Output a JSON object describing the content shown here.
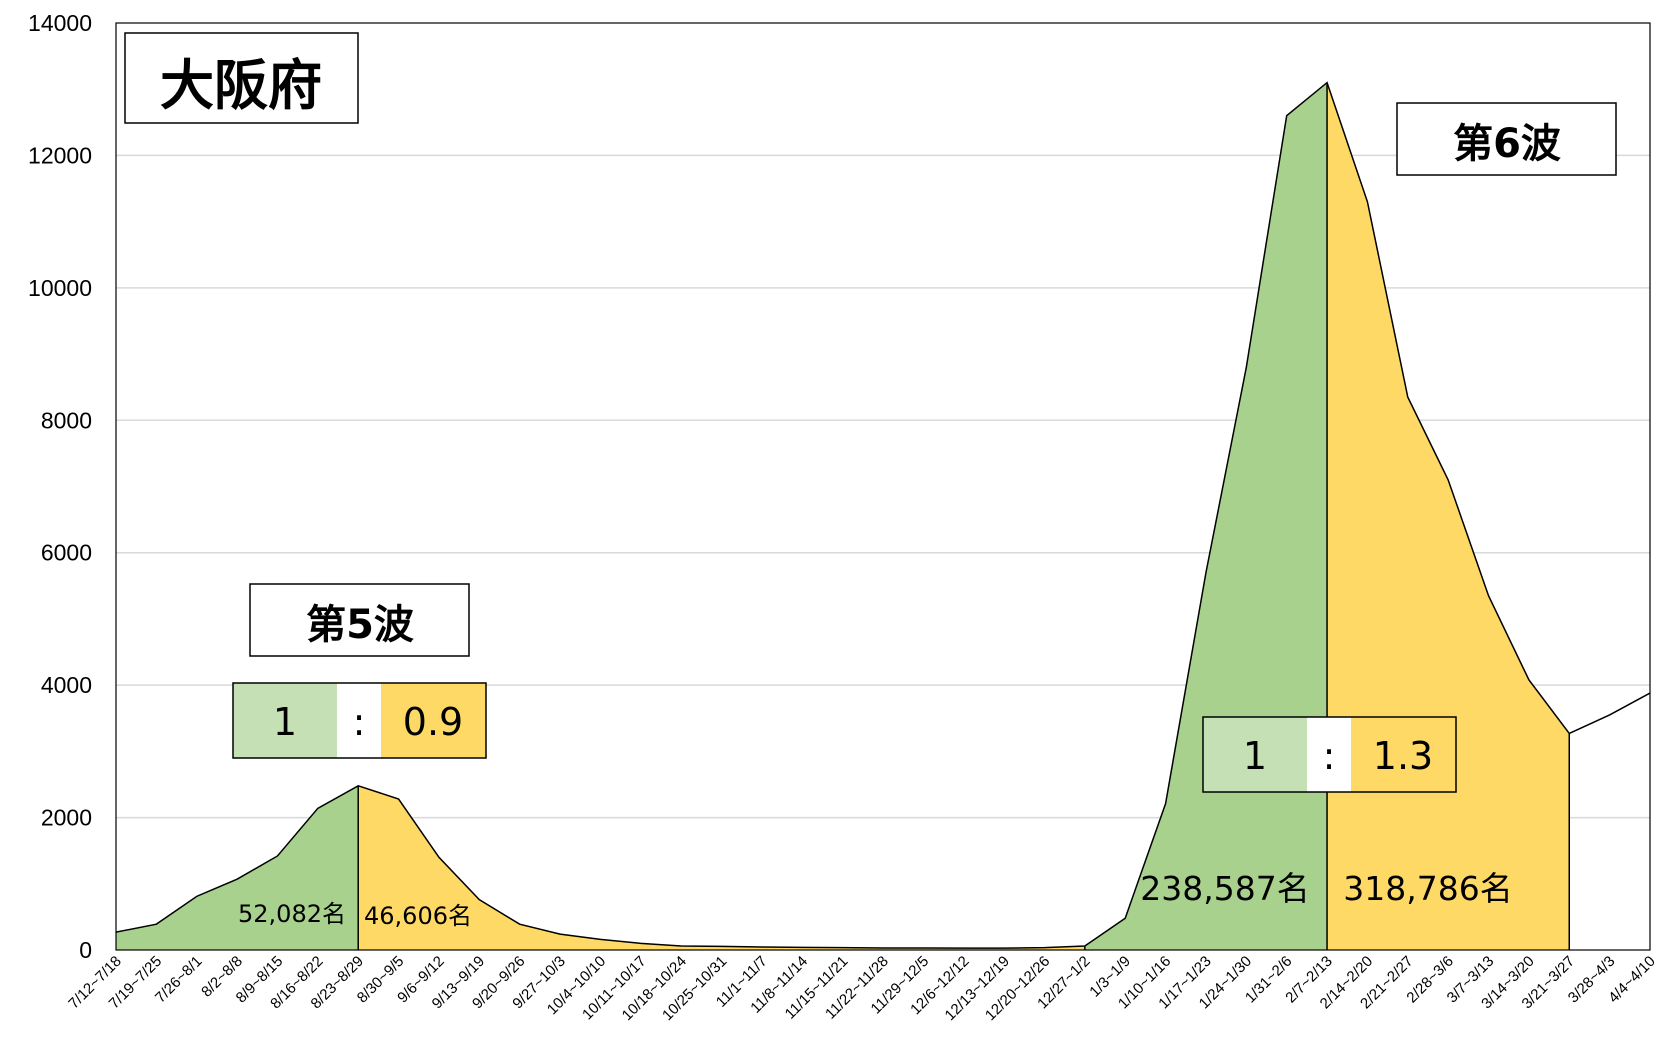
{
  "chart_data": {
    "type": "area",
    "title": "大阪府",
    "xlabel": "",
    "ylabel": "",
    "ylim": [
      0,
      14000
    ],
    "yticks": [
      0,
      2000,
      4000,
      6000,
      8000,
      10000,
      12000,
      14000
    ],
    "grid": true,
    "categories": [
      "7/12~7/18",
      "7/19~7/25",
      "7/26~8/1",
      "8/2~8/8",
      "8/9~8/15",
      "8/16~8/22",
      "8/23~8/29",
      "8/30~9/5",
      "9/6~9/12",
      "9/13~9/19",
      "9/20~9/26",
      "9/27~10/3",
      "10/4~10/10",
      "10/11~10/17",
      "10/18~10/24",
      "10/25~10/31",
      "11/1~11/7",
      "11/8~11/14",
      "11/15~11/21",
      "11/22~11/28",
      "11/29~12/5",
      "12/6~12/12",
      "12/13~12/19",
      "12/20~12/26",
      "12/27~1/2",
      "1/3~1/9",
      "1/10~1/16",
      "1/17~1/23",
      "1/24~1/30",
      "1/31~2/6",
      "2/7~2/13",
      "2/14~2/20",
      "2/21~2/27",
      "2/28~3/6",
      "3/7~3/13",
      "3/14~3/20",
      "3/21~3/27",
      "3/28~4/3",
      "4/4~4/10"
    ],
    "values": [
      270,
      390,
      810,
      1070,
      1420,
      2140,
      2480,
      2280,
      1400,
      760,
      390,
      240,
      160,
      100,
      60,
      55,
      45,
      40,
      35,
      30,
      30,
      28,
      28,
      35,
      60,
      480,
      2210,
      5700,
      8800,
      12600,
      13100,
      11300,
      8350,
      7100,
      5350,
      4080,
      3270,
      3550,
      3880
    ],
    "segments": [
      {
        "from": 0,
        "to": 6,
        "color": "#a9d18e"
      },
      {
        "from": 6,
        "to": 36,
        "color": "#ffd966"
      },
      {
        "from": 24,
        "to": 30,
        "color": "#a9d18e"
      },
      {
        "from": 30,
        "to": 36,
        "color": "#ffd966"
      }
    ],
    "waves": [
      {
        "label": "第5波",
        "ratio_left": "1",
        "ratio_sep": ":",
        "ratio_right": "0.9",
        "before_total": "52,082名",
        "after_total": "46,606名"
      },
      {
        "label": "第6波",
        "ratio_left": "1",
        "ratio_sep": ":",
        "ratio_right": "1.3",
        "before_total": "238,587名",
        "after_total": "318,786名"
      }
    ],
    "colors": {
      "green": "#a9d18e",
      "yellow": "#ffd966",
      "light_green": "#c5e0b4",
      "grid": "#d9d9d9"
    }
  }
}
